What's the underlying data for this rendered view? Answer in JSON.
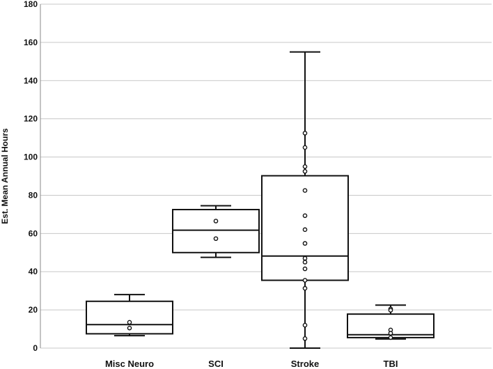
{
  "chart_data": {
    "type": "box",
    "title": "",
    "xlabel": "",
    "ylabel": "Est. Mean Annual Hours",
    "ylim": [
      0,
      180
    ],
    "yticks": [
      0,
      20,
      40,
      60,
      80,
      100,
      120,
      140,
      160,
      180
    ],
    "grid": true,
    "categories": [
      "Misc Neuro",
      "SCI",
      "Stroke",
      "TBI"
    ],
    "boxes": [
      {
        "category": "Misc Neuro",
        "whisker_low": 6.5,
        "q1": 7.5,
        "median": 12.3,
        "q3": 24.5,
        "whisker_high": 28,
        "points": [
          13.5,
          10.5
        ]
      },
      {
        "category": "SCI",
        "whisker_low": 47.5,
        "q1": 50,
        "median": 61.7,
        "q3": 72.5,
        "whisker_high": 74.5,
        "points": [
          66.5,
          57.3
        ]
      },
      {
        "category": "Stroke",
        "whisker_low": 0,
        "q1": 35.5,
        "median": 48.2,
        "q3": 90.2,
        "whisker_high": 155,
        "points": [
          112.5,
          105,
          95,
          92.5,
          82.5,
          69.3,
          62,
          54.8,
          47,
          45,
          41.5,
          35.5,
          31.3,
          12,
          5
        ]
      },
      {
        "category": "TBI",
        "whisker_low": 4.8,
        "q1": 5.5,
        "median": 7,
        "q3": 17.8,
        "whisker_high": 22.5,
        "points": [
          20.5,
          19.8,
          9.5,
          7.8,
          5.5
        ]
      }
    ]
  }
}
